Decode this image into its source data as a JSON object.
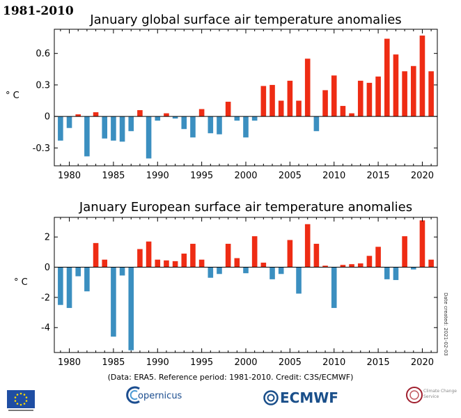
{
  "header": {
    "reference_period": "1981-2010"
  },
  "colors": {
    "positive": "#ee2c14",
    "negative": "#3b8fc0",
    "axis": "#000000"
  },
  "footer": {
    "credit": "(Data: ERA5.  Reference period: 1981-2010.  Credit: C3S/ECMWF)",
    "date_created": "Date created:  2021-02-03",
    "logos": [
      {
        "name": "european-commission",
        "text": ""
      },
      {
        "name": "copernicus",
        "text": "opernicus"
      },
      {
        "name": "ecmwf",
        "text": "ECMWF"
      },
      {
        "name": "climate-change-service",
        "text": "Climate Change Service"
      }
    ]
  },
  "chart_data": [
    {
      "type": "bar",
      "title": "January global surface air temperature anomalies",
      "ylabel": "° C",
      "xlabel": "",
      "ylim": [
        -0.47,
        0.83
      ],
      "yticks": [
        -0.3,
        0,
        0.3,
        0.6
      ],
      "ytick_labels": [
        "-0.3",
        "0",
        "0.3",
        "0.6"
      ],
      "xlim": [
        1978.3,
        2021.7
      ],
      "xticks": [
        1980,
        1985,
        1990,
        1995,
        2000,
        2005,
        2010,
        2015,
        2020
      ],
      "xtick_labels": [
        "1980",
        "1985",
        "1990",
        "1995",
        "2000",
        "2005",
        "2010",
        "2015",
        "2020"
      ],
      "years": [
        1979,
        1980,
        1981,
        1982,
        1983,
        1984,
        1985,
        1986,
        1987,
        1988,
        1989,
        1990,
        1991,
        1992,
        1993,
        1994,
        1995,
        1996,
        1997,
        1998,
        1999,
        2000,
        2001,
        2002,
        2003,
        2004,
        2005,
        2006,
        2007,
        2008,
        2009,
        2010,
        2011,
        2012,
        2013,
        2014,
        2015,
        2016,
        2017,
        2018,
        2019,
        2020,
        2021
      ],
      "values": [
        -0.23,
        -0.11,
        0.02,
        -0.38,
        0.04,
        -0.21,
        -0.23,
        -0.24,
        -0.14,
        0.06,
        -0.4,
        -0.04,
        0.03,
        -0.02,
        -0.12,
        -0.2,
        0.07,
        -0.16,
        -0.17,
        0.14,
        -0.04,
        -0.2,
        -0.04,
        0.29,
        0.3,
        0.15,
        0.34,
        0.15,
        0.55,
        -0.14,
        0.25,
        0.39,
        0.1,
        0.03,
        0.34,
        0.32,
        0.38,
        0.74,
        0.59,
        0.43,
        0.48,
        0.77,
        0.43
      ]
    },
    {
      "type": "bar",
      "title": "January European surface air temperature anomalies",
      "ylabel": "° C",
      "xlabel": "",
      "ylim": [
        -5.65,
        3.3
      ],
      "yticks": [
        -4,
        -2,
        0,
        2
      ],
      "ytick_labels": [
        "-4",
        "-2",
        "0",
        "2"
      ],
      "xlim": [
        1978.3,
        2021.7
      ],
      "xticks": [
        1980,
        1985,
        1990,
        1995,
        2000,
        2005,
        2010,
        2015,
        2020
      ],
      "xtick_labels": [
        "1980",
        "1985",
        "1990",
        "1995",
        "2000",
        "2005",
        "2010",
        "2015",
        "2020"
      ],
      "years": [
        1979,
        1980,
        1981,
        1982,
        1983,
        1984,
        1985,
        1986,
        1987,
        1988,
        1989,
        1990,
        1991,
        1992,
        1993,
        1994,
        1995,
        1996,
        1997,
        1998,
        1999,
        2000,
        2001,
        2002,
        2003,
        2004,
        2005,
        2006,
        2007,
        2008,
        2009,
        2010,
        2011,
        2012,
        2013,
        2014,
        2015,
        2016,
        2017,
        2018,
        2019,
        2020,
        2021
      ],
      "values": [
        -2.5,
        -2.7,
        -0.6,
        -1.6,
        1.6,
        0.5,
        -4.6,
        -0.55,
        -5.5,
        1.2,
        1.7,
        0.5,
        0.45,
        0.4,
        0.9,
        1.55,
        0.5,
        -0.7,
        -0.45,
        1.55,
        0.6,
        -0.4,
        2.05,
        0.3,
        -0.8,
        -0.45,
        1.8,
        -1.75,
        2.85,
        1.55,
        0.1,
        -2.7,
        0.15,
        0.2,
        0.25,
        0.75,
        1.35,
        -0.8,
        -0.85,
        2.05,
        -0.15,
        3.1,
        0.5
      ]
    }
  ]
}
